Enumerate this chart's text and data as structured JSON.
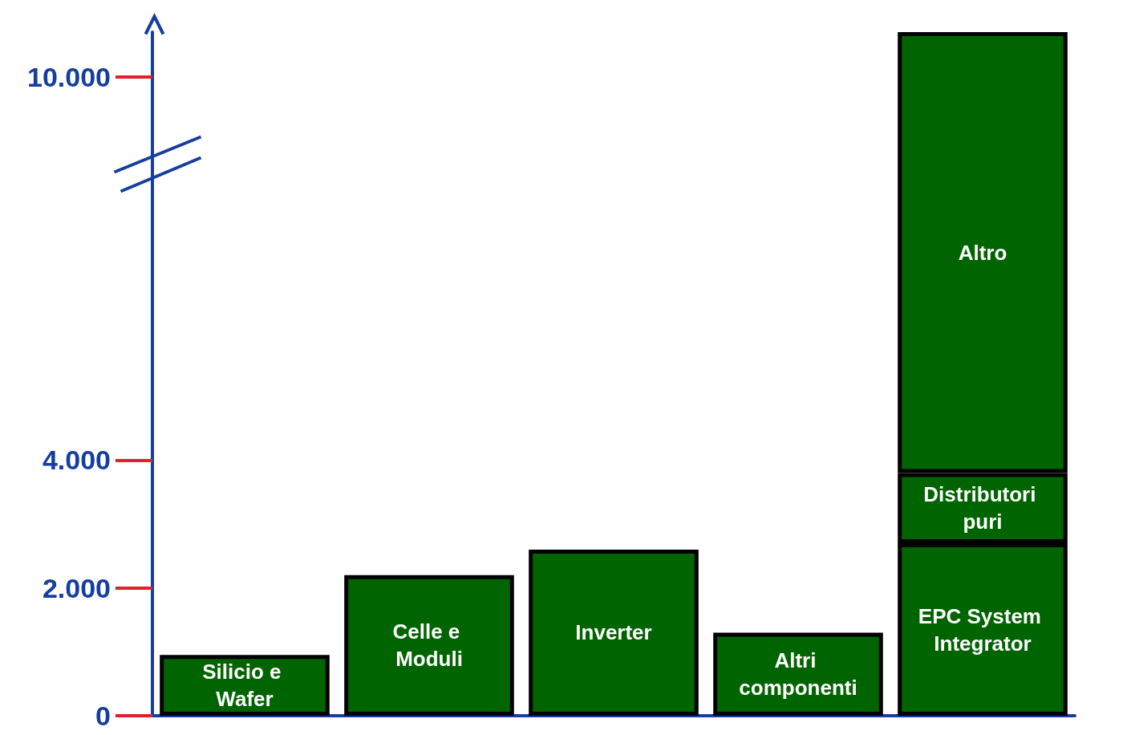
{
  "chart_data": {
    "type": "bar",
    "stacked": true,
    "categories": [
      "Silicio e Wafer",
      "Celle e Moduli",
      "Inverter",
      "Altri componenti",
      "EPC System Integrator"
    ],
    "series": [
      {
        "color": "#006400",
        "values": [
          950,
          2200,
          2600,
          1300,
          2700
        ]
      },
      {
        "name": "Distributori puri",
        "color": "#006400",
        "values": [
          null,
          null,
          null,
          null,
          1100
        ]
      },
      {
        "name": "Altro",
        "color": "#006400",
        "values": [
          null,
          null,
          null,
          null,
          6900
        ]
      }
    ],
    "ylim": [
      0,
      10700
    ],
    "yticks": [
      {
        "value": 0,
        "label": "0"
      },
      {
        "value": 2000,
        "label": "2.000"
      },
      {
        "value": 4000,
        "label": "4.000"
      },
      {
        "value": 10000,
        "label": "10.000"
      }
    ],
    "grid": false,
    "legend": false
  }
}
